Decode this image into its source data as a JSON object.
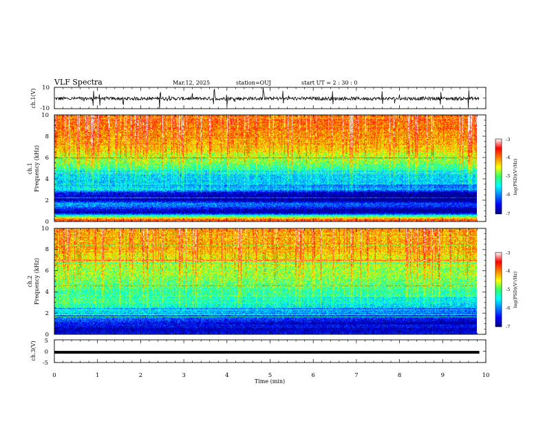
{
  "header": {
    "title": "VLF Spectra",
    "date": "Mar.12, 2025",
    "station": "station=OUJ",
    "start_ut": "start UT =   2 : 30 : 0"
  },
  "chart_data": [
    {
      "type": "line",
      "panel": "ch1-waveform",
      "ylabel": "ch.1(V)",
      "ylim": [
        -10,
        10
      ],
      "yticks": [
        "10",
        "-10"
      ],
      "xlim": [
        0,
        10
      ],
      "baseline_v": -0.5,
      "spikes_at_min": [
        0.9,
        1.05,
        1.6,
        2.45,
        3.7,
        4.0,
        4.85,
        5.3,
        6.45,
        7.6,
        8.95,
        9.6
      ]
    },
    {
      "type": "heatmap",
      "panel": "ch1-spectrogram",
      "ylabel_1": "ch.1",
      "ylabel_2": "Frequency (kHz)",
      "ylim": [
        0,
        10
      ],
      "yticks": [
        "0",
        "2",
        "4",
        "6",
        "8",
        "10"
      ],
      "xlim": [
        0,
        9.85
      ],
      "colorbar": {
        "label": "log(PSD)(V²/Hz)",
        "ticks": [
          "-3",
          "-4",
          "-5",
          "-6",
          "-7"
        ],
        "range": [
          -7,
          -3
        ]
      },
      "profile": [
        [
          0,
          -3.4
        ],
        [
          0.5,
          -5.2
        ],
        [
          0.8,
          -6.8
        ],
        [
          1.2,
          -6.3
        ],
        [
          1.6,
          -5.7
        ],
        [
          2.0,
          -6.7
        ],
        [
          2.6,
          -6.6
        ],
        [
          3.0,
          -5.5
        ],
        [
          3.6,
          -5.7
        ],
        [
          4.5,
          -5.6
        ],
        [
          5.5,
          -4.9
        ],
        [
          7.0,
          -4.3
        ],
        [
          8.5,
          -4.0
        ],
        [
          10,
          -3.8
        ]
      ]
    },
    {
      "type": "heatmap",
      "panel": "ch2-spectrogram",
      "ylabel_1": "ch.2",
      "ylabel_2": "Frequency (kHz)",
      "ylim": [
        0,
        10
      ],
      "yticks": [
        "0",
        "2",
        "4",
        "6",
        "8",
        "10"
      ],
      "xlim": [
        0,
        9.85
      ],
      "colorbar": {
        "label": "log(PSD)(V²/Hz)",
        "ticks": [
          "-3",
          "-4",
          "-5",
          "-6",
          "-7"
        ],
        "range": [
          -7,
          -3
        ]
      },
      "profile": [
        [
          0,
          -6.5
        ],
        [
          0.3,
          -6.8
        ],
        [
          0.8,
          -6.5
        ],
        [
          1.5,
          -6.0
        ],
        [
          2.0,
          -5.6
        ],
        [
          3.0,
          -5.0
        ],
        [
          4.0,
          -5.2
        ],
        [
          5.0,
          -4.9
        ],
        [
          6.0,
          -4.8
        ],
        [
          7.0,
          -4.5
        ],
        [
          8.0,
          -4.2
        ],
        [
          10,
          -4.1
        ]
      ]
    },
    {
      "type": "line",
      "panel": "ch3-waveform",
      "ylabel": "ch.3(V)",
      "ylim": [
        -5,
        5
      ],
      "yticks": [
        "5",
        "0",
        "-5"
      ],
      "xlim": [
        0,
        10
      ],
      "value_v": -0.5,
      "xlabel": "Time (min)",
      "xticks": [
        "0",
        "1",
        "2",
        "3",
        "4",
        "5",
        "6",
        "7",
        "8",
        "9",
        "10"
      ]
    }
  ]
}
